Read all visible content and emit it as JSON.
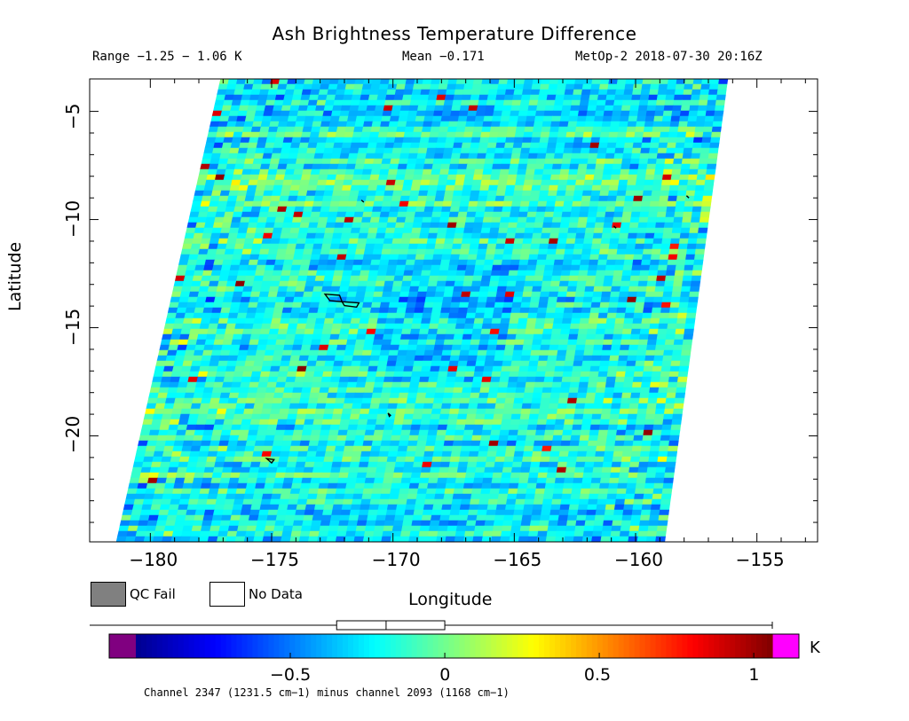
{
  "header": {
    "title": "Ash Brightness Temperature Difference",
    "range": "Range −1.25 − 1.06 K",
    "mean": "Mean −0.171",
    "satellite": "MetOp-2 2018-07-30 20:16Z"
  },
  "chart_data": {
    "type": "heatmap",
    "title": "Ash Brightness Temperature Difference",
    "xlabel": "Longitude",
    "ylabel": "Latitude",
    "xlim": [
      -182.5,
      -152.5
    ],
    "ylim": [
      -24.9,
      -3.5
    ],
    "x_ticks": [
      -180,
      -175,
      -170,
      -165,
      -160,
      -155
    ],
    "x_tick_labels": [
      "−180",
      "−175",
      "−170",
      "−165",
      "−160",
      "−155"
    ],
    "y_ticks": [
      -5,
      -10,
      -15,
      -20
    ],
    "y_tick_labels": [
      "−5",
      "−10",
      "−15",
      "−20"
    ],
    "swath_corners": {
      "top_left": [
        -177.1,
        -3.5
      ],
      "top_right": [
        -156.2,
        -3.5
      ],
      "bottom_right": [
        -158.8,
        -24.9
      ],
      "bottom_left": [
        -181.4,
        -24.9
      ]
    },
    "value_range": [
      -1.25,
      1.06
    ],
    "mean": -0.171,
    "units": "K",
    "colorbar": {
      "min": -1.0,
      "max": 1.06,
      "ticks": [
        -0.5,
        0,
        0.5,
        1
      ],
      "tick_labels": [
        "−0.5",
        "0",
        "0.5",
        "1"
      ],
      "underflow_color": "#800080",
      "overflow_color": "#ff00ff",
      "boxplot": {
        "whisker_low": -1.15,
        "q1": -0.35,
        "median": -0.19,
        "q3": 0.0,
        "whisker_high": 1.06
      }
    },
    "colormap": [
      "#00008f",
      "#0000ff",
      "#0080ff",
      "#00ffff",
      "#80ff80",
      "#ffff00",
      "#ff8000",
      "#ff0000",
      "#800000"
    ]
  },
  "legend": {
    "qc_fail_label": "QC Fail",
    "qc_fail_color": "#808080",
    "no_data_label": "No Data",
    "no_data_color": "#ffffff"
  },
  "colorbar_unit": "K",
  "footnote": "Channel 2347 (1231.5 cm−1) minus channel 2093 (1168 cm−1)"
}
